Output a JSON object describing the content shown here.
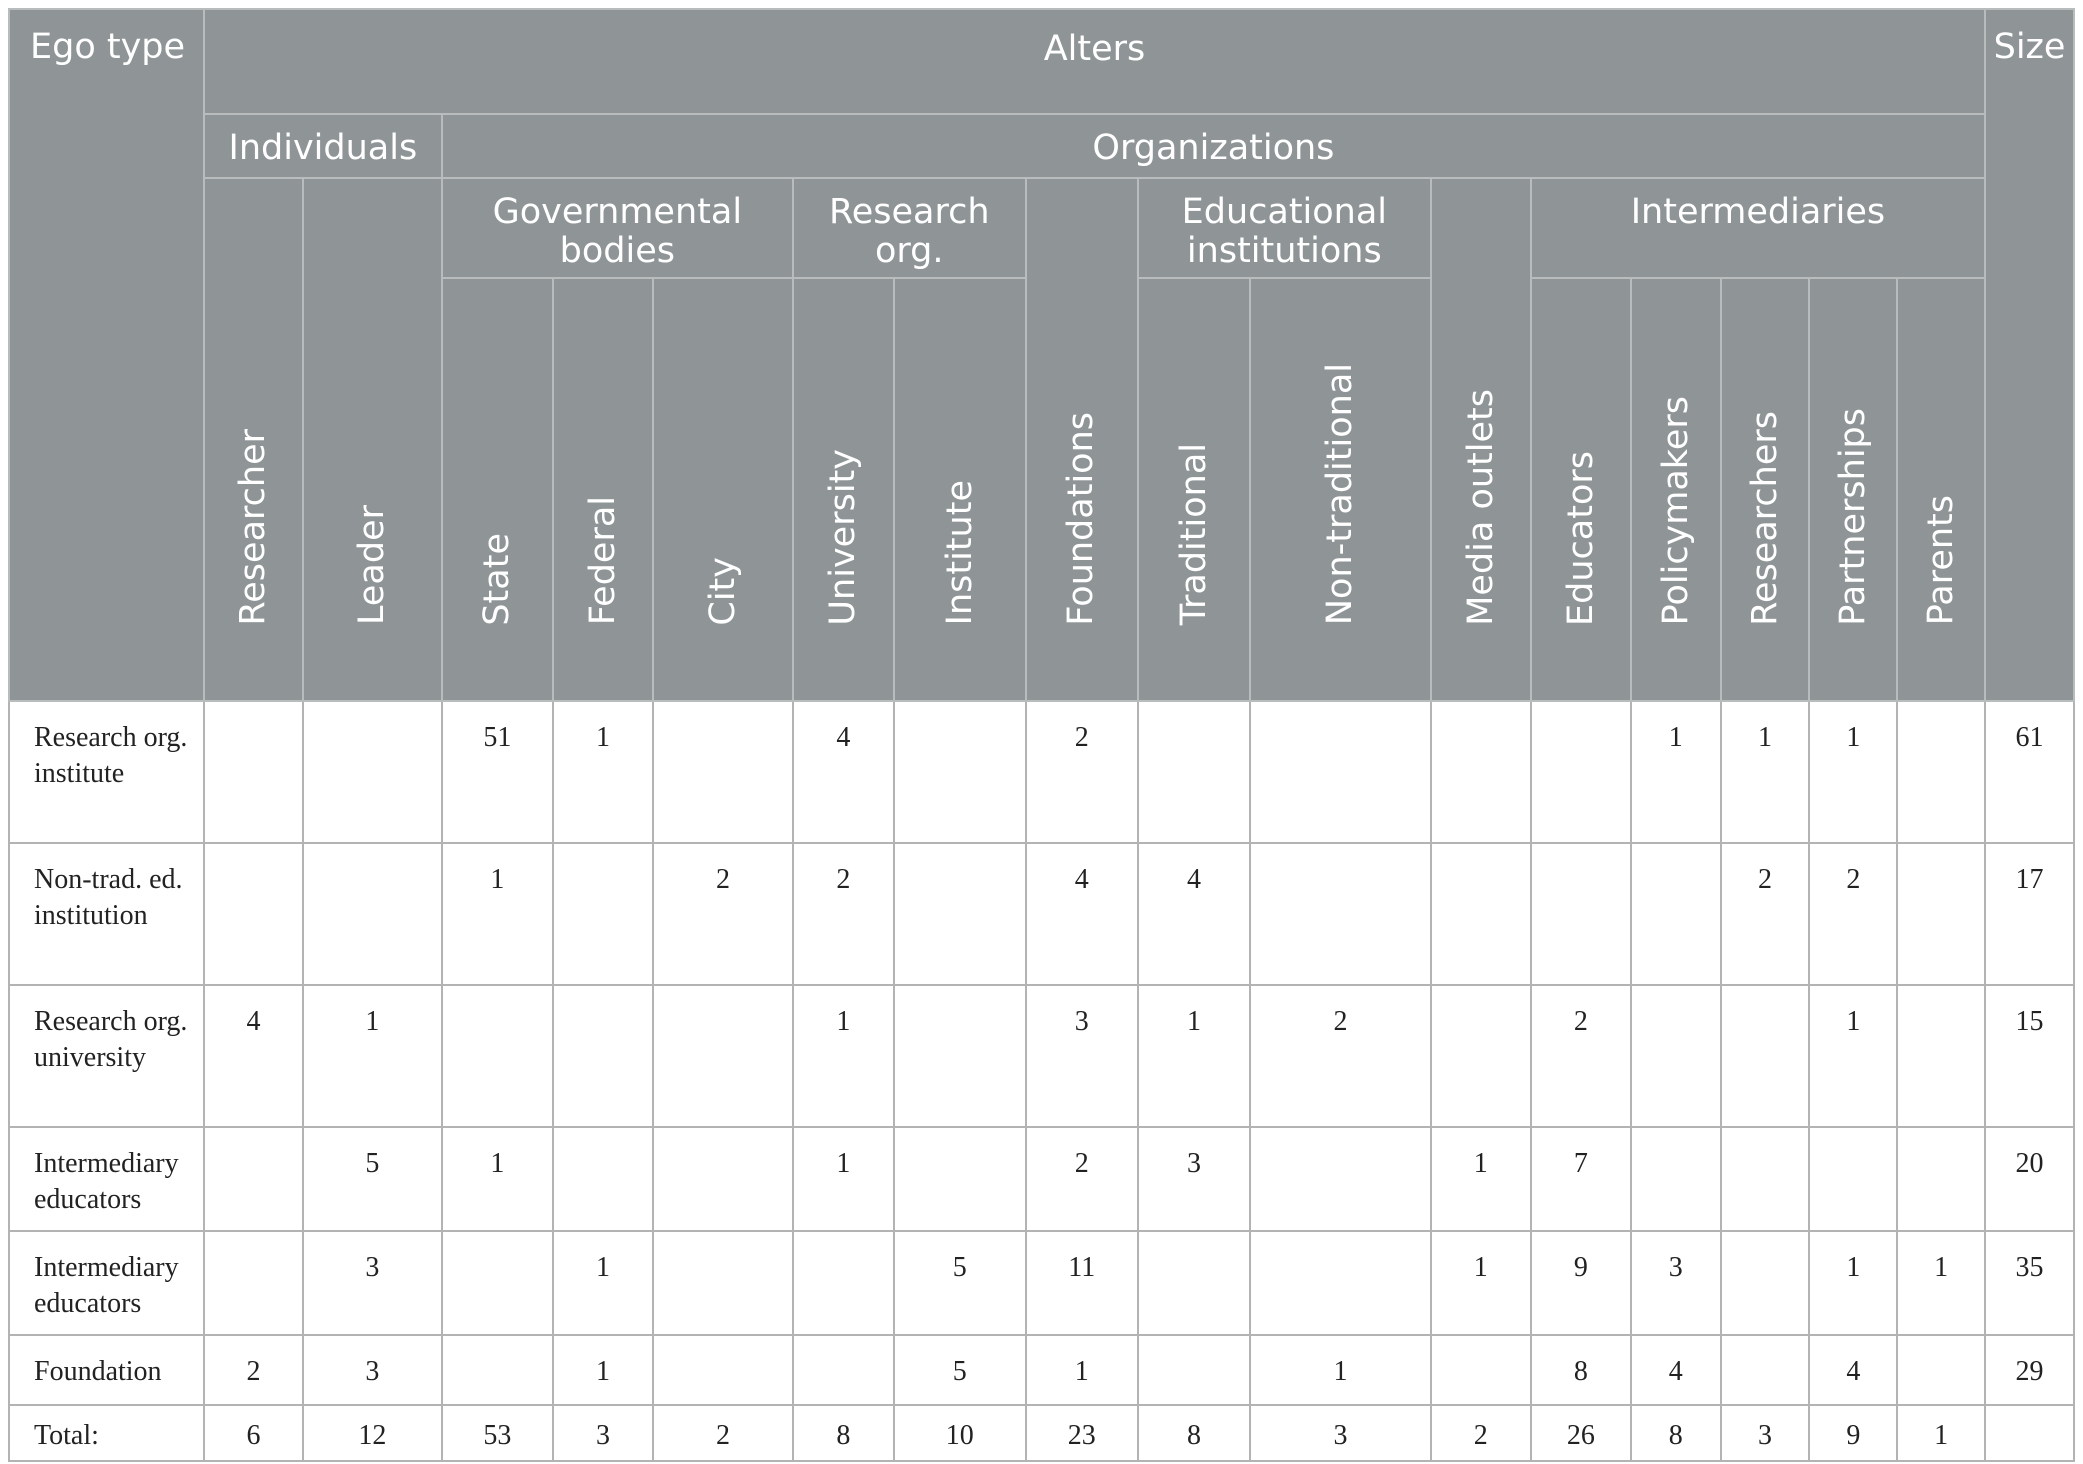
{
  "header": {
    "ego_type": "Ego type",
    "alters": "Alters",
    "size": "Size",
    "individuals": "Individuals",
    "organizations": "Organizations",
    "governmental_bodies": "Governmental bodies",
    "research_org": "Research org.",
    "educational_institutions": "Educational institutions",
    "intermediaries": "Intermediaries",
    "columns": [
      "Researcher",
      "Leader",
      "State",
      "Federal",
      "City",
      "University",
      "Institute",
      "Foundations",
      "Traditional",
      "Non-traditional",
      "Media outlets",
      "Educators",
      "Policymakers",
      "Researchers",
      "Partnerships",
      "Parents"
    ]
  },
  "rows": [
    {
      "label": "Research org. institute",
      "cells": [
        "",
        "",
        "51",
        "1",
        "",
        "4",
        "",
        "2",
        "",
        "",
        "",
        "",
        "1",
        "1",
        "1",
        ""
      ],
      "size": "61"
    },
    {
      "label": "Non-trad. ed. institution",
      "cells": [
        "",
        "",
        "1",
        "",
        "2",
        "2",
        "",
        "4",
        "4",
        "",
        "",
        "",
        "",
        "2",
        "2",
        ""
      ],
      "size": "17"
    },
    {
      "label": "Research org. university",
      "cells": [
        "4",
        "1",
        "",
        "",
        "",
        "1",
        "",
        "3",
        "1",
        "2",
        "",
        "2",
        "",
        "",
        "1",
        ""
      ],
      "size": "15"
    },
    {
      "label": "Intermediary educators",
      "cells": [
        "",
        "5",
        "1",
        "",
        "",
        "1",
        "",
        "2",
        "3",
        "",
        "1",
        "7",
        "",
        "",
        "",
        ""
      ],
      "size": "20"
    },
    {
      "label": "Intermediary educators",
      "cells": [
        "",
        "3",
        "",
        "1",
        "",
        "",
        "5",
        "11",
        "",
        "",
        "1",
        "9",
        "3",
        "",
        "1",
        "1"
      ],
      "size": "35"
    },
    {
      "label": "Foundation",
      "cells": [
        "2",
        "3",
        "",
        "1",
        "",
        "",
        "5",
        "1",
        "",
        "1",
        "",
        "8",
        "4",
        "",
        "4",
        ""
      ],
      "size": "29"
    },
    {
      "label": "Total:",
      "cells": [
        "6",
        "12",
        "53",
        "3",
        "2",
        "8",
        "10",
        "23",
        "8",
        "3",
        "2",
        "26",
        "8",
        "3",
        "9",
        "1"
      ],
      "size": ""
    }
  ]
}
